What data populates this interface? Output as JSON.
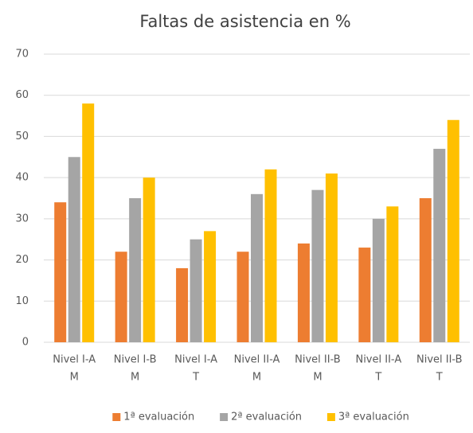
{
  "chart_data": {
    "type": "bar",
    "title": "Faltas de asistencia en %",
    "categories": [
      [
        "Nivel I-A",
        "M"
      ],
      [
        "Nivel I-B",
        "M"
      ],
      [
        "Nivel I-A",
        "T"
      ],
      [
        "Nivel II-A",
        "M"
      ],
      [
        "Nivel II-B",
        "M"
      ],
      [
        "Nivel II-A",
        "T"
      ],
      [
        "Nivel II-B",
        "T"
      ]
    ],
    "series": [
      {
        "name": "1ª evaluación",
        "color": "#ed7d31",
        "values": [
          34,
          22,
          18,
          22,
          24,
          23,
          35
        ]
      },
      {
        "name": "2ª evaluación",
        "color": "#a5a5a5",
        "values": [
          45,
          35,
          25,
          36,
          37,
          30,
          47
        ]
      },
      {
        "name": "3ª evaluación",
        "color": "#ffc000",
        "values": [
          58,
          40,
          27,
          42,
          41,
          33,
          54
        ]
      }
    ],
    "ylim": [
      0,
      70
    ],
    "yticks": [
      0,
      10,
      20,
      30,
      40,
      50,
      60,
      70
    ],
    "grid": true,
    "legend": "bottom"
  }
}
